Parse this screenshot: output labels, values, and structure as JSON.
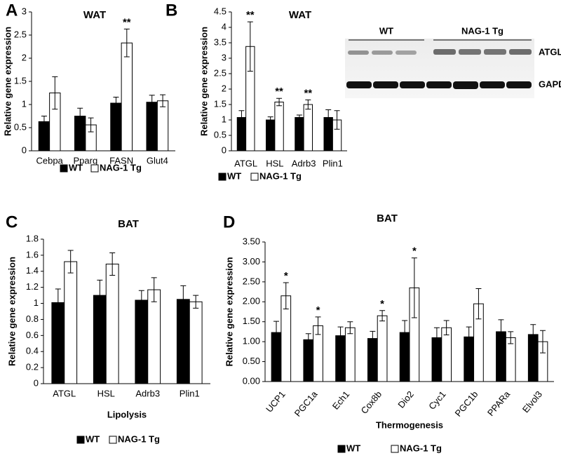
{
  "chart_data": [
    {
      "type": "bar",
      "panel": "A",
      "title": "WAT",
      "y_label": "Relative gene expression",
      "categories": [
        "Cebpa",
        "Pparg",
        "FASN",
        "Glut4"
      ],
      "series": [
        {
          "name": "WT",
          "color": "#000000",
          "values": [
            0.63,
            0.75,
            1.03,
            1.05
          ],
          "errors": [
            0.12,
            0.17,
            0.13,
            0.15
          ]
        },
        {
          "name": "NAG-1 Tg",
          "color": "#ffffff",
          "values": [
            1.25,
            0.56,
            2.33,
            1.08
          ],
          "errors": [
            0.35,
            0.15,
            0.3,
            0.13
          ],
          "significance": [
            null,
            null,
            "**",
            null
          ]
        }
      ],
      "ylim": [
        0,
        3
      ],
      "yticks": [
        0,
        0.5,
        1,
        1.5,
        2,
        2.5,
        3
      ]
    },
    {
      "type": "bar",
      "panel": "B",
      "title": "WAT",
      "y_label": "Relative gene expression",
      "categories": [
        "ATGL",
        "HSL",
        "Adrb3",
        "Plin1"
      ],
      "series": [
        {
          "name": "WT",
          "color": "#000000",
          "values": [
            1.08,
            1.0,
            1.08,
            1.08
          ],
          "errors": [
            0.22,
            0.1,
            0.08,
            0.25
          ]
        },
        {
          "name": "NAG-1 Tg",
          "color": "#ffffff",
          "values": [
            3.38,
            1.58,
            1.5,
            1.0
          ],
          "errors": [
            0.8,
            0.12,
            0.15,
            0.3
          ],
          "significance": [
            "**",
            "**",
            "**",
            null
          ]
        }
      ],
      "ylim": [
        0,
        4.5
      ],
      "yticks": [
        0,
        0.5,
        1,
        1.5,
        2,
        2.5,
        3,
        3.5,
        4,
        4.5
      ]
    },
    {
      "type": "bar",
      "panel": "C",
      "title": "BAT",
      "y_label": "Relative gene expression",
      "x_label": "Lipolysis",
      "categories": [
        "ATGL",
        "HSL",
        "Adrb3",
        "Plin1"
      ],
      "series": [
        {
          "name": "WT",
          "color": "#000000",
          "values": [
            1.01,
            1.1,
            1.04,
            1.05
          ],
          "errors": [
            0.17,
            0.19,
            0.12,
            0.17
          ]
        },
        {
          "name": "NAG-1 Tg",
          "color": "#ffffff",
          "values": [
            1.52,
            1.49,
            1.17,
            1.02
          ],
          "errors": [
            0.14,
            0.14,
            0.15,
            0.08
          ]
        }
      ],
      "ylim": [
        0,
        1.8
      ],
      "yticks": [
        0,
        0.2,
        0.4,
        0.6,
        0.8,
        1,
        1.2,
        1.4,
        1.6,
        1.8
      ]
    },
    {
      "type": "bar",
      "panel": "D",
      "title": "BAT",
      "y_label": "Relative gene expression",
      "x_label": "Thermogenesis",
      "categories": [
        "UCP1",
        "PGC1a",
        "Ech1",
        "Cox8b",
        "Dio2",
        "Cyc1",
        "PGC1b",
        "PPARa",
        "Elvol3"
      ],
      "series": [
        {
          "name": "WT",
          "color": "#000000",
          "values": [
            1.23,
            1.05,
            1.15,
            1.08,
            1.23,
            1.1,
            1.12,
            1.25,
            1.18
          ],
          "errors": [
            0.28,
            0.15,
            0.22,
            0.18,
            0.3,
            0.25,
            0.25,
            0.3,
            0.25
          ]
        },
        {
          "name": "NAG-1 Tg",
          "color": "#ffffff",
          "values": [
            2.15,
            1.4,
            1.35,
            1.65,
            2.35,
            1.35,
            1.95,
            1.1,
            1.0
          ],
          "errors": [
            0.33,
            0.22,
            0.15,
            0.13,
            0.75,
            0.18,
            0.38,
            0.15,
            0.28
          ],
          "significance": [
            "*",
            "*",
            null,
            "*",
            "*",
            null,
            null,
            null,
            null
          ]
        }
      ],
      "ylim": [
        0,
        3.5
      ],
      "yticks": [
        {
          "value": 0,
          "label": "0.00"
        },
        {
          "value": 0.5,
          "label": "0.50"
        },
        {
          "value": 1,
          "label": "1.00"
        },
        {
          "value": 1.5,
          "label": "1.50"
        },
        {
          "value": 2,
          "label": "2.00"
        },
        {
          "value": 2.5,
          "label": "2.50"
        },
        {
          "value": 3,
          "label": "3.00"
        },
        {
          "value": 3.5,
          "label": "3.50"
        }
      ]
    }
  ],
  "blot": {
    "groups": [
      "WT",
      "NAG-1 Tg"
    ],
    "bands": [
      "ATGL",
      "GAPDH"
    ]
  }
}
